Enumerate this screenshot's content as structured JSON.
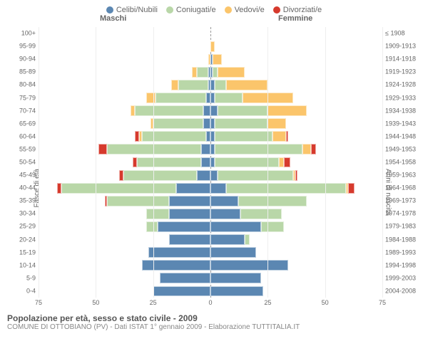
{
  "chart": {
    "type": "population-pyramid",
    "colors": {
      "celibi": "#5b87b2",
      "coniugati": "#b9d7a8",
      "vedovi": "#fbc56b",
      "divorziati": "#d63a2d",
      "background": "#ffffff",
      "grid": "#eeeeee",
      "centerline": "#999999",
      "text": "#666666"
    },
    "legend": [
      {
        "key": "celibi",
        "label": "Celibi/Nubili"
      },
      {
        "key": "coniugati",
        "label": "Coniugati/e"
      },
      {
        "key": "vedovi",
        "label": "Vedovi/e"
      },
      {
        "key": "divorziati",
        "label": "Divorziati/e"
      }
    ],
    "header": {
      "left": "Maschi",
      "right": "Femmine"
    },
    "axis_left_title": "Fasce di età",
    "axis_right_title": "Anni di nascita",
    "x_max": 75,
    "x_ticks": [
      75,
      50,
      25,
      0,
      25,
      50,
      75
    ],
    "age_brackets": [
      "100+",
      "95-99",
      "90-94",
      "85-89",
      "80-84",
      "75-79",
      "70-74",
      "65-69",
      "60-64",
      "55-59",
      "50-54",
      "45-49",
      "40-44",
      "35-39",
      "30-34",
      "25-29",
      "20-24",
      "15-19",
      "10-14",
      "5-9",
      "0-4"
    ],
    "birth_years": [
      "≤ 1908",
      "1909-1913",
      "1914-1918",
      "1919-1923",
      "1924-1928",
      "1929-1933",
      "1934-1938",
      "1939-1943",
      "1944-1948",
      "1949-1953",
      "1954-1958",
      "1959-1963",
      "1964-1968",
      "1969-1973",
      "1974-1978",
      "1979-1983",
      "1984-1988",
      "1989-1993",
      "1994-1998",
      "1999-2003",
      "2004-2008"
    ],
    "rows": [
      {
        "m": {
          "celibi": 0,
          "coniugati": 0,
          "vedovi": 0,
          "divorziati": 0
        },
        "f": {
          "celibi": 0,
          "coniugati": 0,
          "vedovi": 0,
          "divorziati": 0
        }
      },
      {
        "m": {
          "celibi": 0,
          "coniugati": 0,
          "vedovi": 0,
          "divorziati": 0
        },
        "f": {
          "celibi": 0,
          "coniugati": 0,
          "vedovi": 2,
          "divorziati": 0
        }
      },
      {
        "m": {
          "celibi": 0,
          "coniugati": 0,
          "vedovi": 1,
          "divorziati": 0
        },
        "f": {
          "celibi": 1,
          "coniugati": 0,
          "vedovi": 4,
          "divorziati": 0
        }
      },
      {
        "m": {
          "celibi": 1,
          "coniugati": 5,
          "vedovi": 2,
          "divorziati": 0
        },
        "f": {
          "celibi": 1,
          "coniugati": 2,
          "vedovi": 12,
          "divorziati": 0
        }
      },
      {
        "m": {
          "celibi": 1,
          "coniugati": 13,
          "vedovi": 3,
          "divorziati": 0
        },
        "f": {
          "celibi": 2,
          "coniugati": 5,
          "vedovi": 18,
          "divorziati": 0
        }
      },
      {
        "m": {
          "celibi": 2,
          "coniugati": 22,
          "vedovi": 4,
          "divorziati": 0
        },
        "f": {
          "celibi": 2,
          "coniugati": 12,
          "vedovi": 22,
          "divorziati": 0
        }
      },
      {
        "m": {
          "celibi": 3,
          "coniugati": 30,
          "vedovi": 2,
          "divorziati": 0
        },
        "f": {
          "celibi": 3,
          "coniugati": 22,
          "vedovi": 17,
          "divorziati": 0
        }
      },
      {
        "m": {
          "celibi": 3,
          "coniugati": 22,
          "vedovi": 1,
          "divorziati": 0
        },
        "f": {
          "celibi": 2,
          "coniugati": 23,
          "vedovi": 8,
          "divorziati": 0
        }
      },
      {
        "m": {
          "celibi": 2,
          "coniugati": 28,
          "vedovi": 1,
          "divorziati": 2
        },
        "f": {
          "celibi": 2,
          "coniugati": 25,
          "vedovi": 6,
          "divorziati": 1
        }
      },
      {
        "m": {
          "celibi": 4,
          "coniugati": 41,
          "vedovi": 0,
          "divorziati": 4
        },
        "f": {
          "celibi": 2,
          "coniugati": 38,
          "vedovi": 4,
          "divorziati": 2
        }
      },
      {
        "m": {
          "celibi": 4,
          "coniugati": 28,
          "vedovi": 0,
          "divorziati": 2
        },
        "f": {
          "celibi": 2,
          "coniugati": 28,
          "vedovi": 2,
          "divorziati": 3
        }
      },
      {
        "m": {
          "celibi": 6,
          "coniugati": 32,
          "vedovi": 0,
          "divorziati": 2
        },
        "f": {
          "celibi": 3,
          "coniugati": 33,
          "vedovi": 1,
          "divorziati": 1
        }
      },
      {
        "m": {
          "celibi": 15,
          "coniugati": 50,
          "vedovi": 0,
          "divorziati": 2
        },
        "f": {
          "celibi": 7,
          "coniugati": 52,
          "vedovi": 1,
          "divorziati": 3
        }
      },
      {
        "m": {
          "celibi": 18,
          "coniugati": 27,
          "vedovi": 0,
          "divorziati": 1
        },
        "f": {
          "celibi": 12,
          "coniugati": 30,
          "vedovi": 0,
          "divorziati": 0
        }
      },
      {
        "m": {
          "celibi": 18,
          "coniugati": 10,
          "vedovi": 0,
          "divorziati": 0
        },
        "f": {
          "celibi": 13,
          "coniugati": 18,
          "vedovi": 0,
          "divorziati": 0
        }
      },
      {
        "m": {
          "celibi": 23,
          "coniugati": 5,
          "vedovi": 0,
          "divorziati": 0
        },
        "f": {
          "celibi": 22,
          "coniugati": 10,
          "vedovi": 0,
          "divorziati": 0
        }
      },
      {
        "m": {
          "celibi": 18,
          "coniugati": 0,
          "vedovi": 0,
          "divorziati": 0
        },
        "f": {
          "celibi": 15,
          "coniugati": 2,
          "vedovi": 0,
          "divorziati": 0
        }
      },
      {
        "m": {
          "celibi": 27,
          "coniugati": 0,
          "vedovi": 0,
          "divorziati": 0
        },
        "f": {
          "celibi": 20,
          "coniugati": 0,
          "vedovi": 0,
          "divorziati": 0
        }
      },
      {
        "m": {
          "celibi": 30,
          "coniugati": 0,
          "vedovi": 0,
          "divorziati": 0
        },
        "f": {
          "celibi": 34,
          "coniugati": 0,
          "vedovi": 0,
          "divorziati": 0
        }
      },
      {
        "m": {
          "celibi": 22,
          "coniugati": 0,
          "vedovi": 0,
          "divorziati": 0
        },
        "f": {
          "celibi": 22,
          "coniugati": 0,
          "vedovi": 0,
          "divorziati": 0
        }
      },
      {
        "m": {
          "celibi": 25,
          "coniugati": 0,
          "vedovi": 0,
          "divorziati": 0
        },
        "f": {
          "celibi": 23,
          "coniugati": 0,
          "vedovi": 0,
          "divorziati": 0
        }
      }
    ]
  },
  "footer": {
    "title": "Popolazione per età, sesso e stato civile - 2009",
    "subtitle": "COMUNE DI OTTOBIANO (PV) - Dati ISTAT 1° gennaio 2009 - Elaborazione TUTTITALIA.IT"
  }
}
